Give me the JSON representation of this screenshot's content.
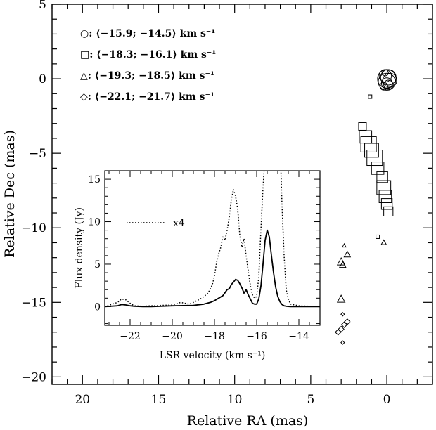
{
  "chart_data": [
    {
      "type": "scatter",
      "xlabel": "Relative RA (mas)",
      "ylabel": "Relative Dec (mas)",
      "xlim": [
        22,
        -3
      ],
      "ylim": [
        -20.5,
        5
      ],
      "x_ticks": [
        20,
        15,
        10,
        5,
        0
      ],
      "y_ticks": [
        5,
        0,
        -5,
        -10,
        -15,
        -20
      ],
      "legend": [
        {
          "symbol": "circle",
          "text": "○: ⟨−15.9; −14.5⟩ km s⁻¹"
        },
        {
          "symbol": "square",
          "text": "□: ⟨−18.3; −16.1⟩ km s⁻¹"
        },
        {
          "symbol": "triangle",
          "text": "△: ⟨−19.3; −18.5⟩ km s⁻¹"
        },
        {
          "symbol": "diamond",
          "text": "◇: ⟨−22.1; −21.7⟩ km s⁻¹"
        }
      ],
      "series": [
        {
          "symbol": "circle",
          "points": [
            {
              "x": 0.1,
              "y": 0.2,
              "s": 0.8
            },
            {
              "x": -0.1,
              "y": 0.1,
              "s": 1.0
            },
            {
              "x": 0.0,
              "y": -0.3,
              "s": 0.7
            },
            {
              "x": -0.2,
              "y": -0.1,
              "s": 0.9
            },
            {
              "x": 0.2,
              "y": -0.5,
              "s": 0.5
            },
            {
              "x": 0.0,
              "y": -0.2,
              "s": 1.1
            },
            {
              "x": -0.1,
              "y": -0.4,
              "s": 0.6
            },
            {
              "x": 0.1,
              "y": 0.4,
              "s": 0.4
            },
            {
              "x": 0.0,
              "y": 0.0,
              "s": 1.2
            }
          ]
        },
        {
          "symbol": "square",
          "points": [
            {
              "x": 1.1,
              "y": -1.2,
              "s": 0.2
            },
            {
              "x": 1.6,
              "y": -3.2,
              "s": 0.5
            },
            {
              "x": 1.4,
              "y": -3.9,
              "s": 0.8
            },
            {
              "x": 1.2,
              "y": -4.4,
              "s": 1.0
            },
            {
              "x": 1.0,
              "y": -4.8,
              "s": 0.9
            },
            {
              "x": 0.8,
              "y": -5.3,
              "s": 1.0
            },
            {
              "x": 0.6,
              "y": -6.0,
              "s": 0.8
            },
            {
              "x": 0.3,
              "y": -6.6,
              "s": 0.7
            },
            {
              "x": 0.2,
              "y": -7.3,
              "s": 0.9
            },
            {
              "x": 0.1,
              "y": -7.9,
              "s": 0.8
            },
            {
              "x": 0.0,
              "y": -8.4,
              "s": 0.7
            },
            {
              "x": -0.1,
              "y": -8.9,
              "s": 0.6
            },
            {
              "x": 0.6,
              "y": -10.6,
              "s": 0.2
            }
          ]
        },
        {
          "symbol": "triangle",
          "points": [
            {
              "x": 2.8,
              "y": -11.2,
              "s": 0.2
            },
            {
              "x": 2.6,
              "y": -11.8,
              "s": 0.5
            },
            {
              "x": 3.0,
              "y": -12.3,
              "s": 0.6
            },
            {
              "x": 2.9,
              "y": -12.5,
              "s": 0.5
            },
            {
              "x": 3.0,
              "y": -14.8,
              "s": 0.6
            },
            {
              "x": 0.2,
              "y": -11.0,
              "s": 0.4
            }
          ]
        },
        {
          "symbol": "diamond",
          "points": [
            {
              "x": 2.9,
              "y": -15.8,
              "s": 0.3
            },
            {
              "x": 2.6,
              "y": -16.3,
              "s": 0.5
            },
            {
              "x": 2.8,
              "y": -16.5,
              "s": 0.5
            },
            {
              "x": 3.0,
              "y": -16.8,
              "s": 0.5
            },
            {
              "x": 3.2,
              "y": -17.0,
              "s": 0.5
            },
            {
              "x": 2.9,
              "y": -17.7,
              "s": 0.3
            }
          ]
        }
      ]
    },
    {
      "type": "line",
      "xlabel": "LSR velocity (km s⁻¹)",
      "ylabel": "Flux density (Jy)",
      "xlim": [
        -23.2,
        -13
      ],
      "ylim": [
        -2.2,
        16
      ],
      "x_ticks": [
        -22,
        -20,
        -18,
        -16,
        -14
      ],
      "y_ticks": [
        0,
        5,
        10,
        15
      ],
      "annotation": "x4",
      "series": [
        {
          "style": "solid",
          "x": [
            -23.2,
            -22.6,
            -22.4,
            -22.2,
            -22.0,
            -21.8,
            -21.4,
            -21.0,
            -20.0,
            -19.0,
            -18.5,
            -18.2,
            -18.0,
            -17.8,
            -17.6,
            -17.4,
            -17.3,
            -17.2,
            -17.1,
            -17.0,
            -16.9,
            -16.8,
            -16.7,
            -16.6,
            -16.5,
            -16.4,
            -16.3,
            -16.2,
            -16.1,
            -16.0,
            -15.9,
            -15.8,
            -15.7,
            -15.6,
            -15.5,
            -15.4,
            -15.3,
            -15.2,
            -15.1,
            -15.0,
            -14.9,
            -14.8,
            -14.7,
            -14.6,
            -14.4,
            -14.0,
            -13.0
          ],
          "y": [
            0.0,
            0.1,
            0.25,
            0.2,
            0.1,
            0.05,
            0.0,
            0.0,
            0.1,
            0.15,
            0.3,
            0.5,
            0.7,
            1.0,
            1.3,
            2.0,
            2.1,
            2.6,
            2.9,
            3.2,
            3.1,
            2.7,
            2.2,
            1.6,
            2.0,
            1.4,
            0.9,
            0.4,
            0.3,
            0.3,
            0.9,
            2.4,
            5.0,
            7.8,
            9.0,
            8.2,
            6.0,
            4.0,
            2.3,
            1.2,
            0.6,
            0.25,
            0.1,
            0.05,
            0.0,
            0.0,
            0.0
          ]
        },
        {
          "style": "dotted",
          "x": [
            -23.2,
            -22.6,
            -22.4,
            -22.2,
            -22.0,
            -21.8,
            -21.4,
            -21.0,
            -20.0,
            -19.6,
            -19.2,
            -19.0,
            -18.6,
            -18.3,
            -18.1,
            -18.0,
            -17.9,
            -17.8,
            -17.7,
            -17.6,
            -17.5,
            -17.4,
            -17.3,
            -17.2,
            -17.1,
            -17.0,
            -16.9,
            -16.8,
            -16.7,
            -16.6,
            -16.5,
            -16.4,
            -16.3,
            -16.2,
            -16.1,
            -16.0,
            -15.9,
            -15.8,
            -15.7,
            -15.65,
            -14.85,
            -14.8,
            -14.7,
            -14.6,
            -14.5,
            -14.4,
            -14.0,
            -13.0
          ],
          "y": [
            0.0,
            0.5,
            0.9,
            0.8,
            0.4,
            0.1,
            0.05,
            0.1,
            0.2,
            0.5,
            0.3,
            0.5,
            1.0,
            1.6,
            2.6,
            3.6,
            5.2,
            6.2,
            7.0,
            8.2,
            7.8,
            9.0,
            10.5,
            12.6,
            13.8,
            13.0,
            11.5,
            8.4,
            7.0,
            8.0,
            6.0,
            4.2,
            2.5,
            1.4,
            1.0,
            1.2,
            3.5,
            9.0,
            14.0,
            16.0,
            16.0,
            12.0,
            6.0,
            2.0,
            0.9,
            0.3,
            0.1,
            0.0
          ]
        }
      ]
    }
  ]
}
